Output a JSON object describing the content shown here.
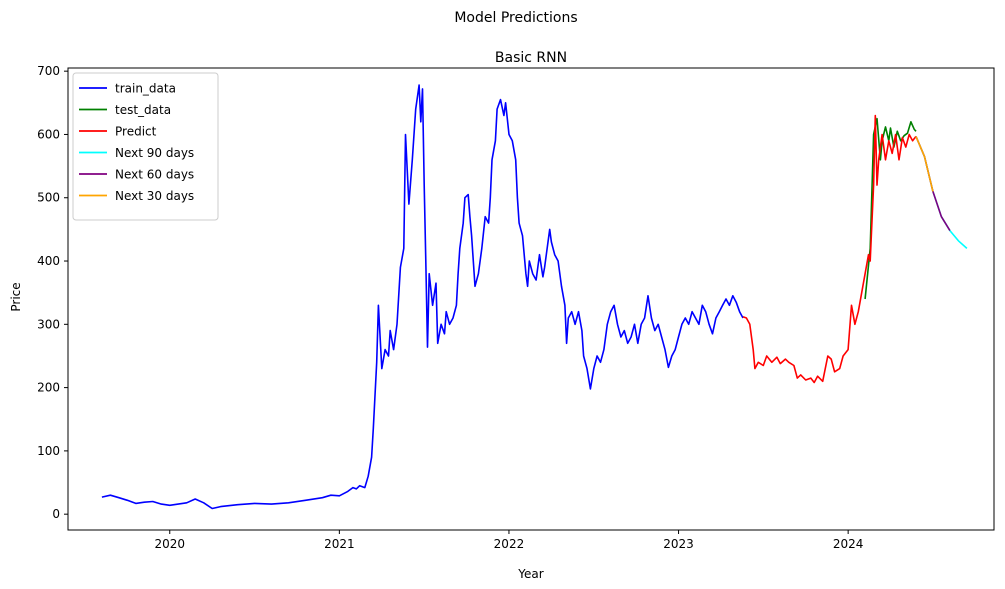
{
  "chart_data": {
    "type": "line",
    "suptitle": "Model Predictions",
    "title": "Basic RNN",
    "xlabel": "Year",
    "ylabel": "Price",
    "xlim": [
      2019.4,
      2024.86
    ],
    "ylim": [
      -25,
      705
    ],
    "x_ticks": [
      2020,
      2021,
      2022,
      2023,
      2024
    ],
    "x_tick_labels": [
      "2020",
      "2021",
      "2022",
      "2023",
      "2024"
    ],
    "y_ticks": [
      0,
      100,
      200,
      300,
      400,
      500,
      600,
      700
    ],
    "y_tick_labels": [
      "0",
      "100",
      "200",
      "300",
      "400",
      "500",
      "600",
      "700"
    ],
    "grid": false,
    "legend_position": "top-left",
    "series": [
      {
        "name": "train_data",
        "color": "#0000ff",
        "points": [
          [
            2019.6,
            27
          ],
          [
            2019.65,
            30
          ],
          [
            2019.7,
            26
          ],
          [
            2019.75,
            22
          ],
          [
            2019.8,
            17
          ],
          [
            2019.85,
            19
          ],
          [
            2019.9,
            20
          ],
          [
            2019.95,
            16
          ],
          [
            2020.0,
            14
          ],
          [
            2020.05,
            16
          ],
          [
            2020.1,
            18
          ],
          [
            2020.15,
            24
          ],
          [
            2020.2,
            18
          ],
          [
            2020.25,
            9
          ],
          [
            2020.3,
            12
          ],
          [
            2020.4,
            15
          ],
          [
            2020.5,
            17
          ],
          [
            2020.6,
            16
          ],
          [
            2020.7,
            18
          ],
          [
            2020.8,
            22
          ],
          [
            2020.9,
            26
          ],
          [
            2020.95,
            30
          ],
          [
            2021.0,
            29
          ],
          [
            2021.05,
            36
          ],
          [
            2021.08,
            42
          ],
          [
            2021.1,
            40
          ],
          [
            2021.12,
            45
          ],
          [
            2021.15,
            42
          ],
          [
            2021.17,
            60
          ],
          [
            2021.19,
            90
          ],
          [
            2021.2,
            135
          ],
          [
            2021.22,
            240
          ],
          [
            2021.23,
            330
          ],
          [
            2021.25,
            230
          ],
          [
            2021.27,
            260
          ],
          [
            2021.29,
            250
          ],
          [
            2021.3,
            290
          ],
          [
            2021.32,
            260
          ],
          [
            2021.34,
            300
          ],
          [
            2021.36,
            390
          ],
          [
            2021.38,
            420
          ],
          [
            2021.39,
            600
          ],
          [
            2021.41,
            490
          ],
          [
            2021.43,
            560
          ],
          [
            2021.45,
            640
          ],
          [
            2021.47,
            678
          ],
          [
            2021.48,
            620
          ],
          [
            2021.49,
            672
          ],
          [
            2021.5,
            520
          ],
          [
            2021.51,
            400
          ],
          [
            2021.52,
            264
          ],
          [
            2021.53,
            380
          ],
          [
            2021.55,
            330
          ],
          [
            2021.57,
            365
          ],
          [
            2021.58,
            270
          ],
          [
            2021.6,
            300
          ],
          [
            2021.62,
            285
          ],
          [
            2021.63,
            320
          ],
          [
            2021.65,
            300
          ],
          [
            2021.67,
            310
          ],
          [
            2021.69,
            330
          ],
          [
            2021.7,
            380
          ],
          [
            2021.71,
            420
          ],
          [
            2021.73,
            460
          ],
          [
            2021.74,
            500
          ],
          [
            2021.76,
            505
          ],
          [
            2021.77,
            470
          ],
          [
            2021.78,
            440
          ],
          [
            2021.8,
            360
          ],
          [
            2021.82,
            380
          ],
          [
            2021.84,
            420
          ],
          [
            2021.86,
            470
          ],
          [
            2021.88,
            460
          ],
          [
            2021.89,
            500
          ],
          [
            2021.9,
            560
          ],
          [
            2021.92,
            590
          ],
          [
            2021.93,
            640
          ],
          [
            2021.95,
            655
          ],
          [
            2021.97,
            630
          ],
          [
            2021.98,
            650
          ],
          [
            2022.0,
            600
          ],
          [
            2022.02,
            590
          ],
          [
            2022.04,
            560
          ],
          [
            2022.05,
            500
          ],
          [
            2022.06,
            460
          ],
          [
            2022.07,
            450
          ],
          [
            2022.08,
            440
          ],
          [
            2022.1,
            380
          ],
          [
            2022.11,
            360
          ],
          [
            2022.12,
            400
          ],
          [
            2022.14,
            380
          ],
          [
            2022.16,
            370
          ],
          [
            2022.18,
            410
          ],
          [
            2022.2,
            375
          ],
          [
            2022.21,
            390
          ],
          [
            2022.22,
            410
          ],
          [
            2022.23,
            430
          ],
          [
            2022.24,
            450
          ],
          [
            2022.25,
            430
          ],
          [
            2022.27,
            410
          ],
          [
            2022.29,
            400
          ],
          [
            2022.31,
            360
          ],
          [
            2022.33,
            330
          ],
          [
            2022.34,
            270
          ],
          [
            2022.35,
            310
          ],
          [
            2022.37,
            320
          ],
          [
            2022.39,
            300
          ],
          [
            2022.41,
            320
          ],
          [
            2022.43,
            290
          ],
          [
            2022.44,
            250
          ],
          [
            2022.46,
            230
          ],
          [
            2022.48,
            198
          ],
          [
            2022.5,
            230
          ],
          [
            2022.52,
            250
          ],
          [
            2022.54,
            240
          ],
          [
            2022.56,
            260
          ],
          [
            2022.58,
            300
          ],
          [
            2022.6,
            320
          ],
          [
            2022.62,
            330
          ],
          [
            2022.64,
            300
          ],
          [
            2022.66,
            280
          ],
          [
            2022.68,
            290
          ],
          [
            2022.7,
            270
          ],
          [
            2022.72,
            280
          ],
          [
            2022.74,
            300
          ],
          [
            2022.76,
            270
          ],
          [
            2022.78,
            300
          ],
          [
            2022.8,
            310
          ],
          [
            2022.82,
            345
          ],
          [
            2022.84,
            310
          ],
          [
            2022.86,
            290
          ],
          [
            2022.88,
            300
          ],
          [
            2022.9,
            280
          ],
          [
            2022.92,
            260
          ],
          [
            2022.94,
            232
          ],
          [
            2022.96,
            250
          ],
          [
            2022.98,
            260
          ],
          [
            2023.0,
            280
          ],
          [
            2023.02,
            300
          ],
          [
            2023.04,
            310
          ],
          [
            2023.06,
            300
          ],
          [
            2023.08,
            320
          ],
          [
            2023.1,
            310
          ],
          [
            2023.12,
            300
          ],
          [
            2023.14,
            330
          ],
          [
            2023.16,
            320
          ],
          [
            2023.18,
            300
          ],
          [
            2023.2,
            285
          ],
          [
            2023.22,
            310
          ],
          [
            2023.24,
            320
          ],
          [
            2023.26,
            330
          ],
          [
            2023.28,
            340
          ],
          [
            2023.3,
            330
          ],
          [
            2023.32,
            345
          ],
          [
            2023.34,
            335
          ],
          [
            2023.36,
            320
          ],
          [
            2023.38,
            310
          ]
        ]
      },
      {
        "name": "test_data",
        "color": "#008000",
        "points": [
          [
            2024.1,
            340
          ],
          [
            2024.13,
            420
          ],
          [
            2024.15,
            600
          ],
          [
            2024.17,
            625
          ],
          [
            2024.19,
            560
          ],
          [
            2024.2,
            590
          ],
          [
            2024.22,
            612
          ],
          [
            2024.24,
            590
          ],
          [
            2024.25,
            610
          ],
          [
            2024.27,
            580
          ],
          [
            2024.29,
            605
          ],
          [
            2024.31,
            590
          ],
          [
            2024.33,
            598
          ],
          [
            2024.35,
            602
          ],
          [
            2024.37,
            620
          ],
          [
            2024.39,
            608
          ],
          [
            2024.4,
            605
          ]
        ]
      },
      {
        "name": "Predict",
        "color": "#ff0000",
        "points": [
          [
            2023.38,
            312
          ],
          [
            2023.4,
            310
          ],
          [
            2023.42,
            300
          ],
          [
            2023.44,
            260
          ],
          [
            2023.45,
            230
          ],
          [
            2023.47,
            240
          ],
          [
            2023.5,
            235
          ],
          [
            2023.52,
            250
          ],
          [
            2023.55,
            240
          ],
          [
            2023.58,
            248
          ],
          [
            2023.6,
            238
          ],
          [
            2023.63,
            245
          ],
          [
            2023.65,
            240
          ],
          [
            2023.68,
            235
          ],
          [
            2023.7,
            215
          ],
          [
            2023.72,
            220
          ],
          [
            2023.75,
            212
          ],
          [
            2023.78,
            215
          ],
          [
            2023.8,
            208
          ],
          [
            2023.82,
            218
          ],
          [
            2023.85,
            210
          ],
          [
            2023.88,
            250
          ],
          [
            2023.9,
            245
          ],
          [
            2023.92,
            225
          ],
          [
            2023.95,
            230
          ],
          [
            2023.97,
            250
          ],
          [
            2024.0,
            260
          ],
          [
            2024.02,
            330
          ],
          [
            2024.04,
            300
          ],
          [
            2024.06,
            320
          ],
          [
            2024.08,
            350
          ],
          [
            2024.1,
            380
          ],
          [
            2024.12,
            410
          ],
          [
            2024.13,
            400
          ],
          [
            2024.15,
            520
          ],
          [
            2024.16,
            630
          ],
          [
            2024.17,
            520
          ],
          [
            2024.18,
            560
          ],
          [
            2024.2,
            600
          ],
          [
            2024.22,
            560
          ],
          [
            2024.24,
            590
          ],
          [
            2024.26,
            570
          ],
          [
            2024.28,
            600
          ],
          [
            2024.3,
            560
          ],
          [
            2024.32,
            595
          ],
          [
            2024.34,
            580
          ],
          [
            2024.36,
            600
          ],
          [
            2024.38,
            590
          ],
          [
            2024.4,
            597
          ]
        ]
      },
      {
        "name": "Next 90 days",
        "color": "#00ffff",
        "points": [
          [
            2024.4,
            597
          ],
          [
            2024.45,
            565
          ],
          [
            2024.5,
            510
          ],
          [
            2024.55,
            470
          ],
          [
            2024.6,
            448
          ],
          [
            2024.65,
            432
          ],
          [
            2024.7,
            420
          ]
        ]
      },
      {
        "name": "Next 60 days",
        "color": "#800080",
        "points": [
          [
            2024.4,
            597
          ],
          [
            2024.45,
            565
          ],
          [
            2024.5,
            510
          ],
          [
            2024.55,
            470
          ],
          [
            2024.6,
            448
          ]
        ]
      },
      {
        "name": "Next 30 days",
        "color": "#ffa500",
        "points": [
          [
            2024.4,
            597
          ],
          [
            2024.45,
            565
          ],
          [
            2024.5,
            510
          ]
        ]
      }
    ]
  }
}
